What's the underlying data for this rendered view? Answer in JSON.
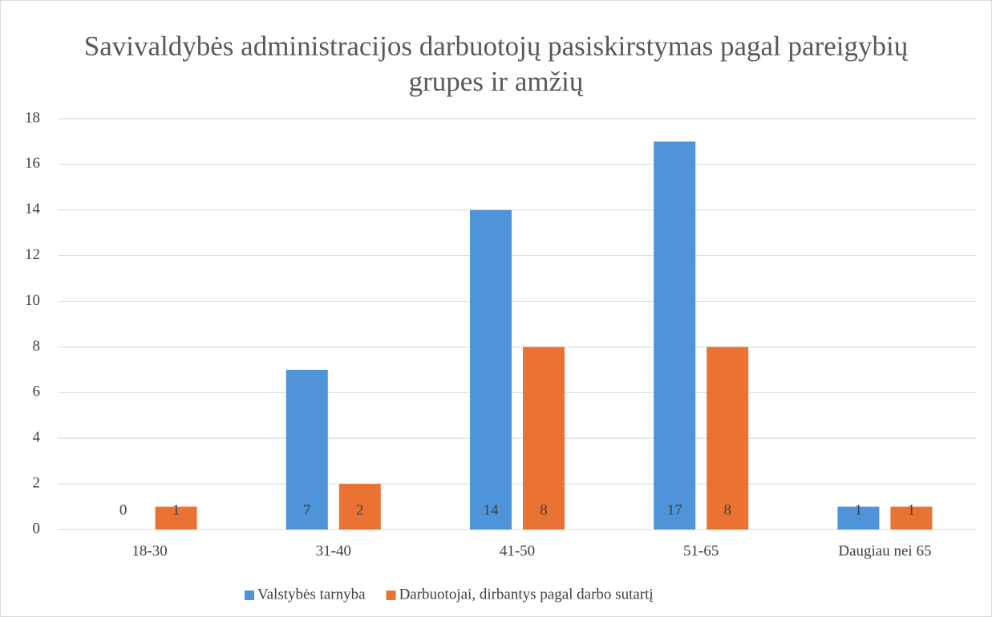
{
  "chart_data": {
    "type": "bar",
    "title": "Savivaldybės administracijos darbuotojų pasiskirstymas pagal pareigybių grupes ir amžių",
    "categories": [
      "18-30",
      "31-40",
      "41-50",
      "51-65",
      "Daugiau nei 65"
    ],
    "series": [
      {
        "name": "Valstybės tarnyba",
        "color": "#4f94d9",
        "values": [
          0,
          7,
          14,
          17,
          1
        ]
      },
      {
        "name": "Darbuotojai, dirbantys pagal darbo sutartį",
        "color": "#ea7333",
        "values": [
          1,
          2,
          8,
          8,
          1
        ]
      }
    ],
    "ylim": [
      0,
      18
    ],
    "yticks": [
      0,
      2,
      4,
      6,
      8,
      10,
      12,
      14,
      16,
      18
    ],
    "grid": true,
    "legend": "bottom"
  }
}
